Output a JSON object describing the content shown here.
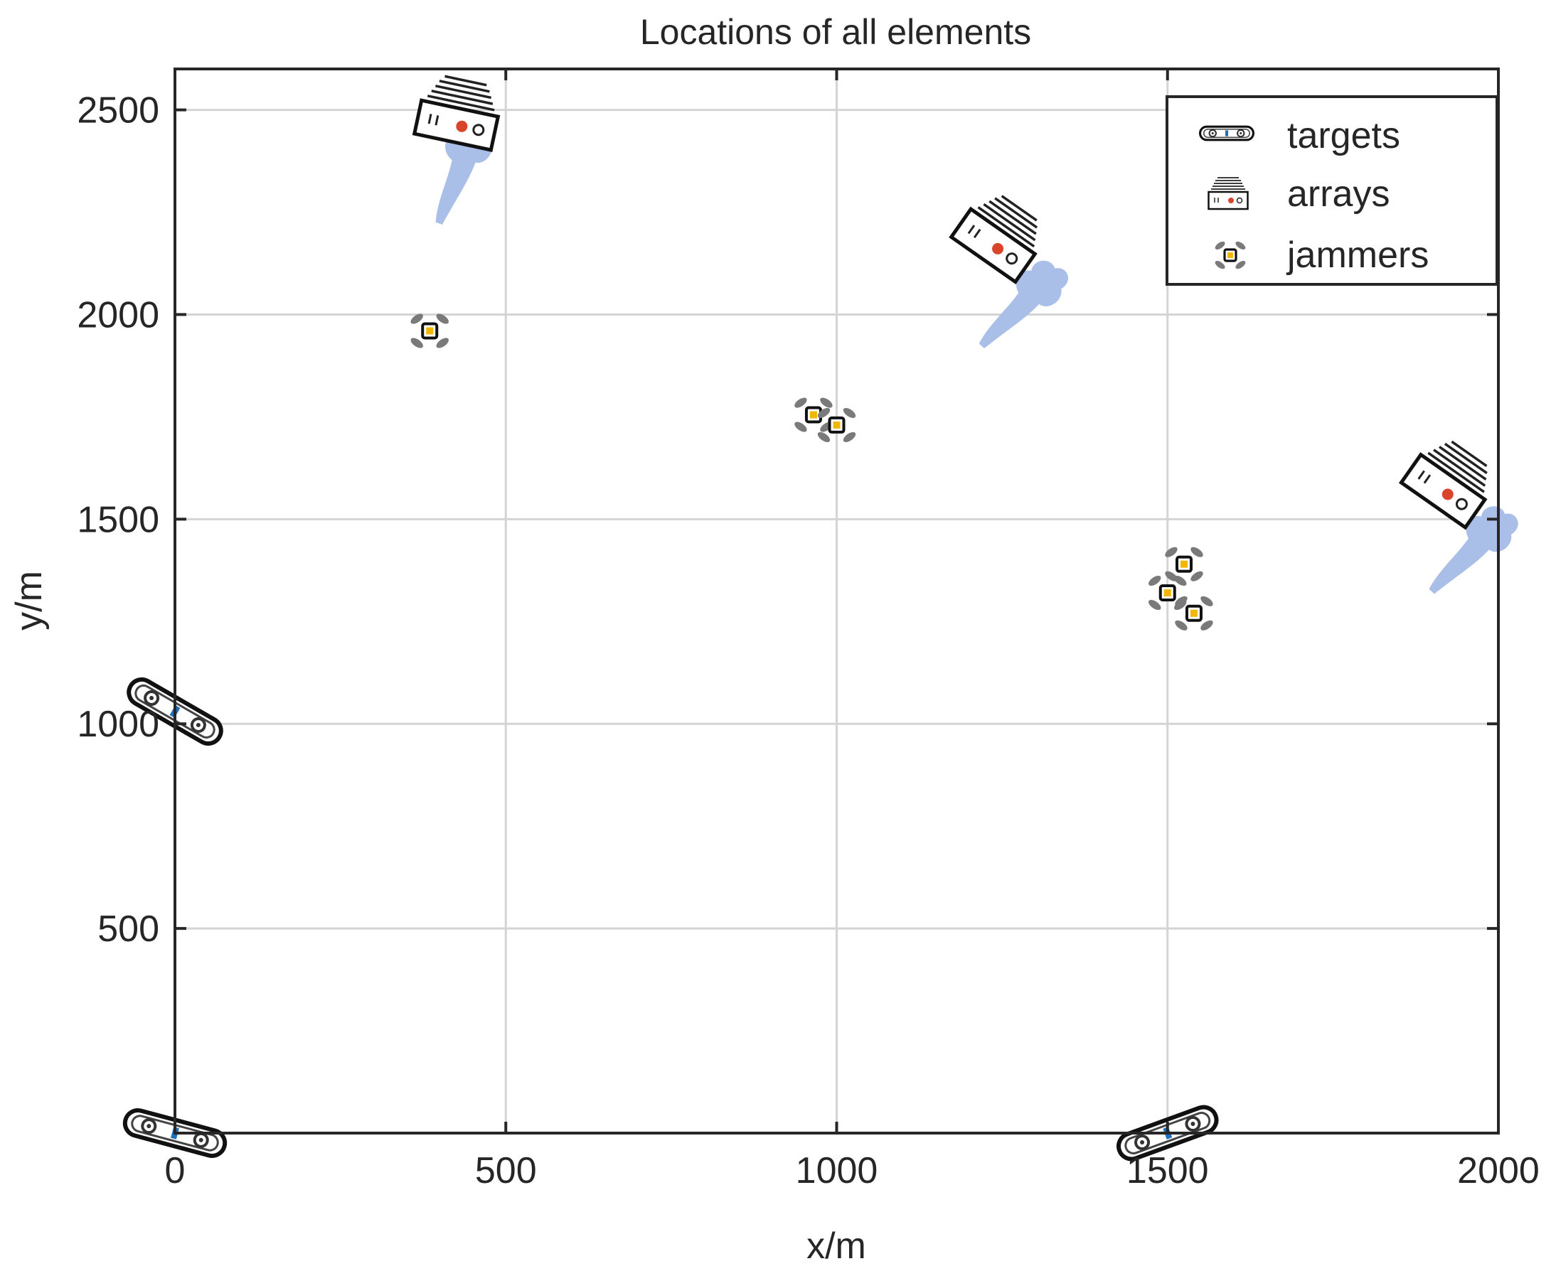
{
  "chart_data": {
    "type": "scatter",
    "title": "Locations of all elements",
    "xlabel": "x/m",
    "ylabel": "y/m",
    "xlim": [
      0,
      2000
    ],
    "ylim": [
      0,
      2600
    ],
    "xticks": [
      0,
      500,
      1000,
      1500,
      2000
    ],
    "xtick_labels": [
      "0",
      "500",
      "1000",
      "1500",
      "2000"
    ],
    "yticks": [
      500,
      1000,
      1500,
      2000,
      2500
    ],
    "ytick_labels": [
      "500",
      "1000",
      "1500",
      "2000",
      "2500"
    ],
    "grid": true,
    "legend_position": "top-right",
    "series": [
      {
        "name": "targets",
        "marker": "vehicle-icon",
        "points": [
          {
            "x": 0,
            "y": 1030,
            "angle": 30
          },
          {
            "x": 0,
            "y": 0,
            "angle": 15
          },
          {
            "x": 1500,
            "y": 0,
            "angle": -20
          }
        ]
      },
      {
        "name": "arrays",
        "marker": "radar-array-icon",
        "points": [
          {
            "x": 430,
            "y": 2500,
            "angle": 12
          },
          {
            "x": 1250,
            "y": 2200,
            "angle": 35
          },
          {
            "x": 1930,
            "y": 1600,
            "angle": 35
          }
        ]
      },
      {
        "name": "jammers",
        "marker": "drone-icon",
        "points": [
          {
            "x": 385,
            "y": 1960
          },
          {
            "x": 965,
            "y": 1755
          },
          {
            "x": 1000,
            "y": 1730
          },
          {
            "x": 1525,
            "y": 1390
          },
          {
            "x": 1500,
            "y": 1320
          },
          {
            "x": 1540,
            "y": 1270
          }
        ]
      }
    ],
    "beam_color": "#a9bfe8",
    "colors": {
      "axes": "#262626",
      "grid": "#d4d4d4",
      "jammer_core": "#f2b705",
      "array_dot": "#d9452b",
      "target_body": "#5a5a5a",
      "target_accent": "#1f6fbf"
    }
  }
}
